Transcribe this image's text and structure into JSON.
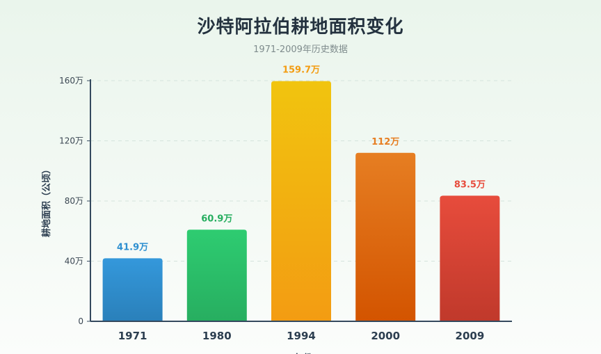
{
  "header": {
    "title": "沙特阿拉伯耕地面积变化",
    "subtitle": "1971-2009年历史数据"
  },
  "chart_data": {
    "type": "bar",
    "title": "沙特阿拉伯耕地面积变化",
    "subtitle": "1971-2009年历史数据",
    "categories": [
      "1971",
      "1980",
      "1994",
      "2000",
      "2009"
    ],
    "values": [
      41.9,
      60.9,
      159.7,
      112,
      83.5
    ],
    "value_labels": [
      "41.9万",
      "60.9万",
      "159.7万",
      "112万",
      "83.5万"
    ],
    "ylabel": "耕地面积（公顷）",
    "xlabel": "年份",
    "ylim": [
      0,
      160
    ],
    "yticks": [
      0,
      40,
      80,
      120,
      160
    ],
    "ytick_labels": [
      "0",
      "40万",
      "80万",
      "120万",
      "160万"
    ],
    "grid": true,
    "colors": [
      {
        "top": "#3498db",
        "bottom": "#2a80ba",
        "label": "#2e8fd0"
      },
      {
        "top": "#2ecc71",
        "bottom": "#27ae60",
        "label": "#27ae60"
      },
      {
        "top": "#f1c40f",
        "bottom": "#f39c12",
        "label": "#f39c12"
      },
      {
        "top": "#e67e22",
        "bottom": "#d35400",
        "label": "#e67e22"
      },
      {
        "top": "#e74c3c",
        "bottom": "#c0392b",
        "label": "#e74c3c"
      }
    ],
    "axis_color": "#34495e",
    "grid_color": "#d5e3dc"
  }
}
